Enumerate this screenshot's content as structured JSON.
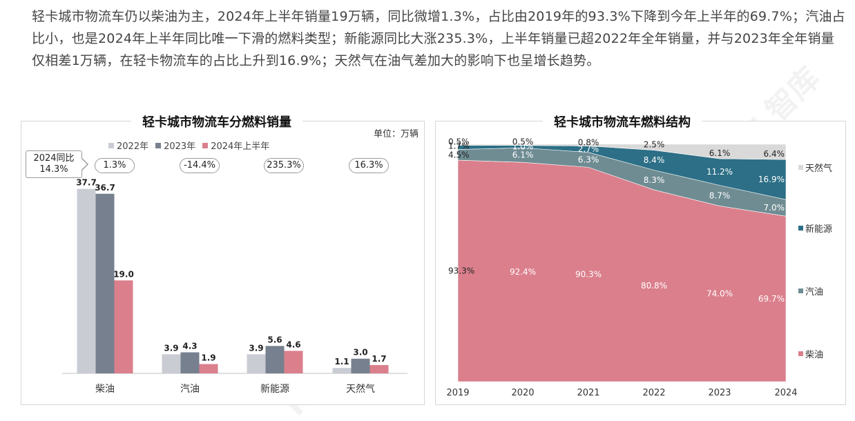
{
  "intro": {
    "text": "轻卡城市物流车仍以柴油为主，2024年上半年销量19万辆，同比微增1.3%，占比由2019年的93.3%下降到今年上半年的69.7%；汽油占比小，也是2024年上半年同比唯一下滑的燃料类型；新能源同比大涨235.3%，上半年销量已超2022年全年销量，并与2023年全年销量仅相差1万辆，在轻卡物流车的占比上升到16.9%；天然气在油气差加大的影响下也呈增长趋势。"
  },
  "watermark": "KERUI 智库",
  "colors": {
    "y2022": "#c9ccd3",
    "y2023": "#77808f",
    "h2024": "#db7f8c",
    "diesel": "#db7f8c",
    "gasoline": "#6f8c93",
    "ev": "#2c6f86",
    "gas": "#d9d9d9"
  },
  "chart_data": [
    {
      "type": "bar",
      "title": "轻卡城市物流车分燃料销量",
      "unit": "单位：万辆",
      "categories": [
        "柴油",
        "汽油",
        "新能源",
        "天然气"
      ],
      "series": [
        {
          "name": "2022年",
          "values": [
            37.7,
            3.9,
            3.9,
            1.1
          ]
        },
        {
          "name": "2023年",
          "values": [
            36.7,
            4.3,
            5.6,
            3.0
          ]
        },
        {
          "name": "2024年上半年",
          "values": [
            19.0,
            1.9,
            4.6,
            1.7
          ]
        }
      ],
      "yoy_title": [
        "2024同比",
        "14.3%"
      ],
      "yoy": [
        "1.3%",
        "-14.4%",
        "235.3%",
        "16.3%"
      ],
      "ylim": [
        0,
        40
      ],
      "legend": "top"
    },
    {
      "type": "area",
      "title": "轻卡城市物流车燃料结构",
      "x": [
        "2019",
        "2020",
        "2021",
        "2022",
        "2023",
        "2024"
      ],
      "series": [
        {
          "name": "柴油",
          "values": [
            93.3,
            92.4,
            90.3,
            80.8,
            74.0,
            69.7
          ],
          "labels": [
            "93.3%",
            "92.4%",
            "90.3%",
            "80.8%",
            "74.0%",
            "69.7%"
          ]
        },
        {
          "name": "汽油",
          "values": [
            4.5,
            6.1,
            6.3,
            8.3,
            8.7,
            7.0
          ],
          "labels": [
            "4.5%",
            "6.1%",
            "6.3%",
            "8.3%",
            "8.7%",
            "7.0%"
          ]
        },
        {
          "name": "新能源",
          "values": [
            1.7,
            1.0,
            2.7,
            8.4,
            11.2,
            16.9
          ],
          "labels": [
            "1.7%",
            "1.0%",
            "2.7%",
            "8.4%",
            "11.2%",
            "16.9%"
          ]
        },
        {
          "name": "天然气",
          "values": [
            0.5,
            0.5,
            0.8,
            2.5,
            6.1,
            6.4
          ],
          "labels": [
            "0.5%",
            "0.5%",
            "0.8%",
            "2.5%",
            "6.1%",
            "6.4%"
          ]
        }
      ],
      "ylim": [
        0,
        100
      ],
      "legend": "right"
    }
  ]
}
